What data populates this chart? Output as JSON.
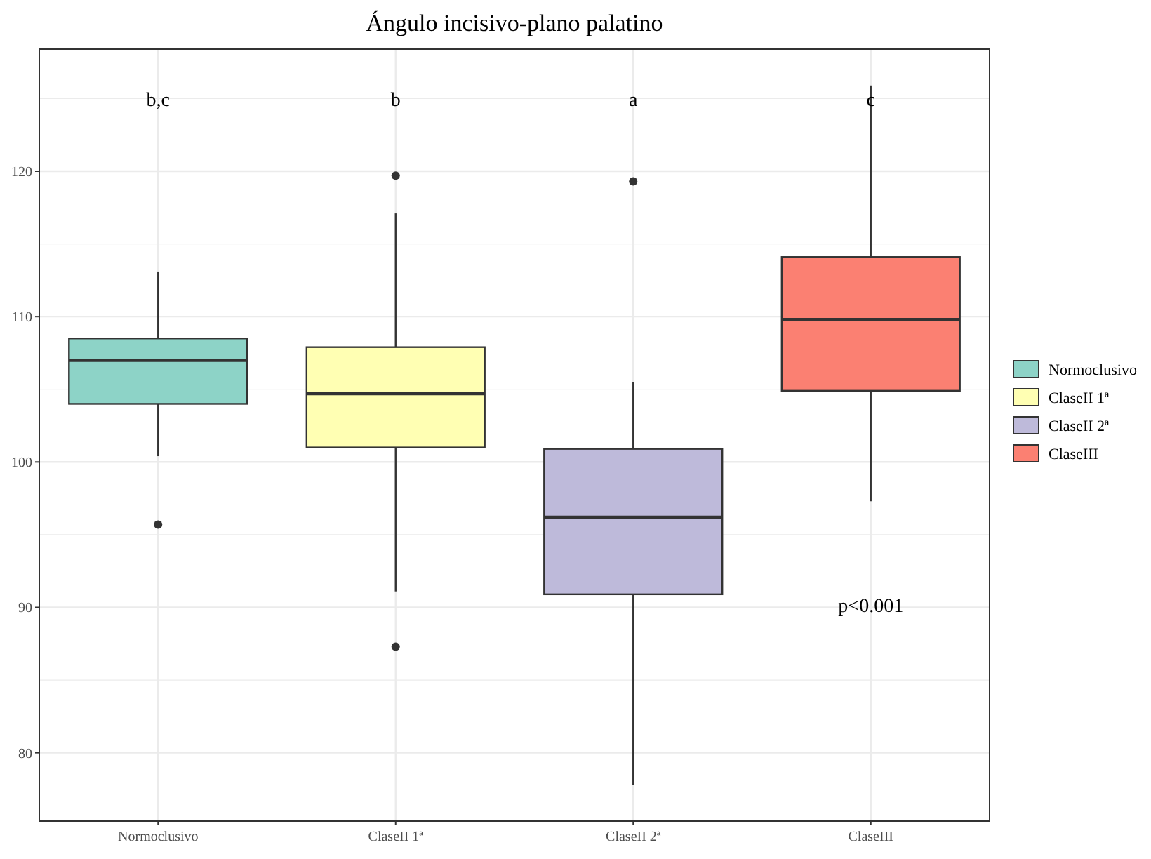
{
  "chart_data": {
    "type": "box",
    "title": "Ángulo incisivo-plano palatino",
    "categories": [
      "Normoclusivo",
      "ClaseII 1ª",
      "ClaseII 2ª",
      "ClaseIII"
    ],
    "series": [
      {
        "name": "Normoclusivo",
        "color": "#8dd3c7",
        "boxes": [
          {
            "low": 100.4,
            "q1": 104.0,
            "median": 107.0,
            "q3": 108.5,
            "high": 113.1,
            "outliers": [
              95.7
            ]
          },
          null,
          null,
          null
        ]
      },
      {
        "name": "ClaseII 1ª",
        "color": "#ffffb3",
        "boxes": [
          null,
          {
            "low": 91.1,
            "q1": 101.0,
            "median": 104.7,
            "q3": 107.9,
            "high": 117.1,
            "outliers": [
              119.7,
              87.3
            ]
          },
          null,
          null
        ]
      },
      {
        "name": "ClaseII 2ª",
        "color": "#bebada",
        "boxes": [
          null,
          null,
          {
            "low": 77.8,
            "q1": 90.9,
            "median": 96.2,
            "q3": 100.9,
            "high": 105.5,
            "outliers": [
              119.3
            ]
          },
          null
        ]
      },
      {
        "name": "ClaseIII",
        "color": "#fb8072",
        "boxes": [
          null,
          null,
          null,
          {
            "low": 97.3,
            "q1": 104.9,
            "median": 109.8,
            "q3": 114.1,
            "high": 125.9
          }
        ]
      }
    ],
    "ylim": [
      75.3,
      128.4
    ],
    "yticks": [
      80,
      90,
      100,
      110,
      120
    ],
    "grid": true,
    "legend": "right",
    "annotations": [
      "b,c",
      "b",
      "a",
      "c",
      "p<0.001"
    ]
  }
}
